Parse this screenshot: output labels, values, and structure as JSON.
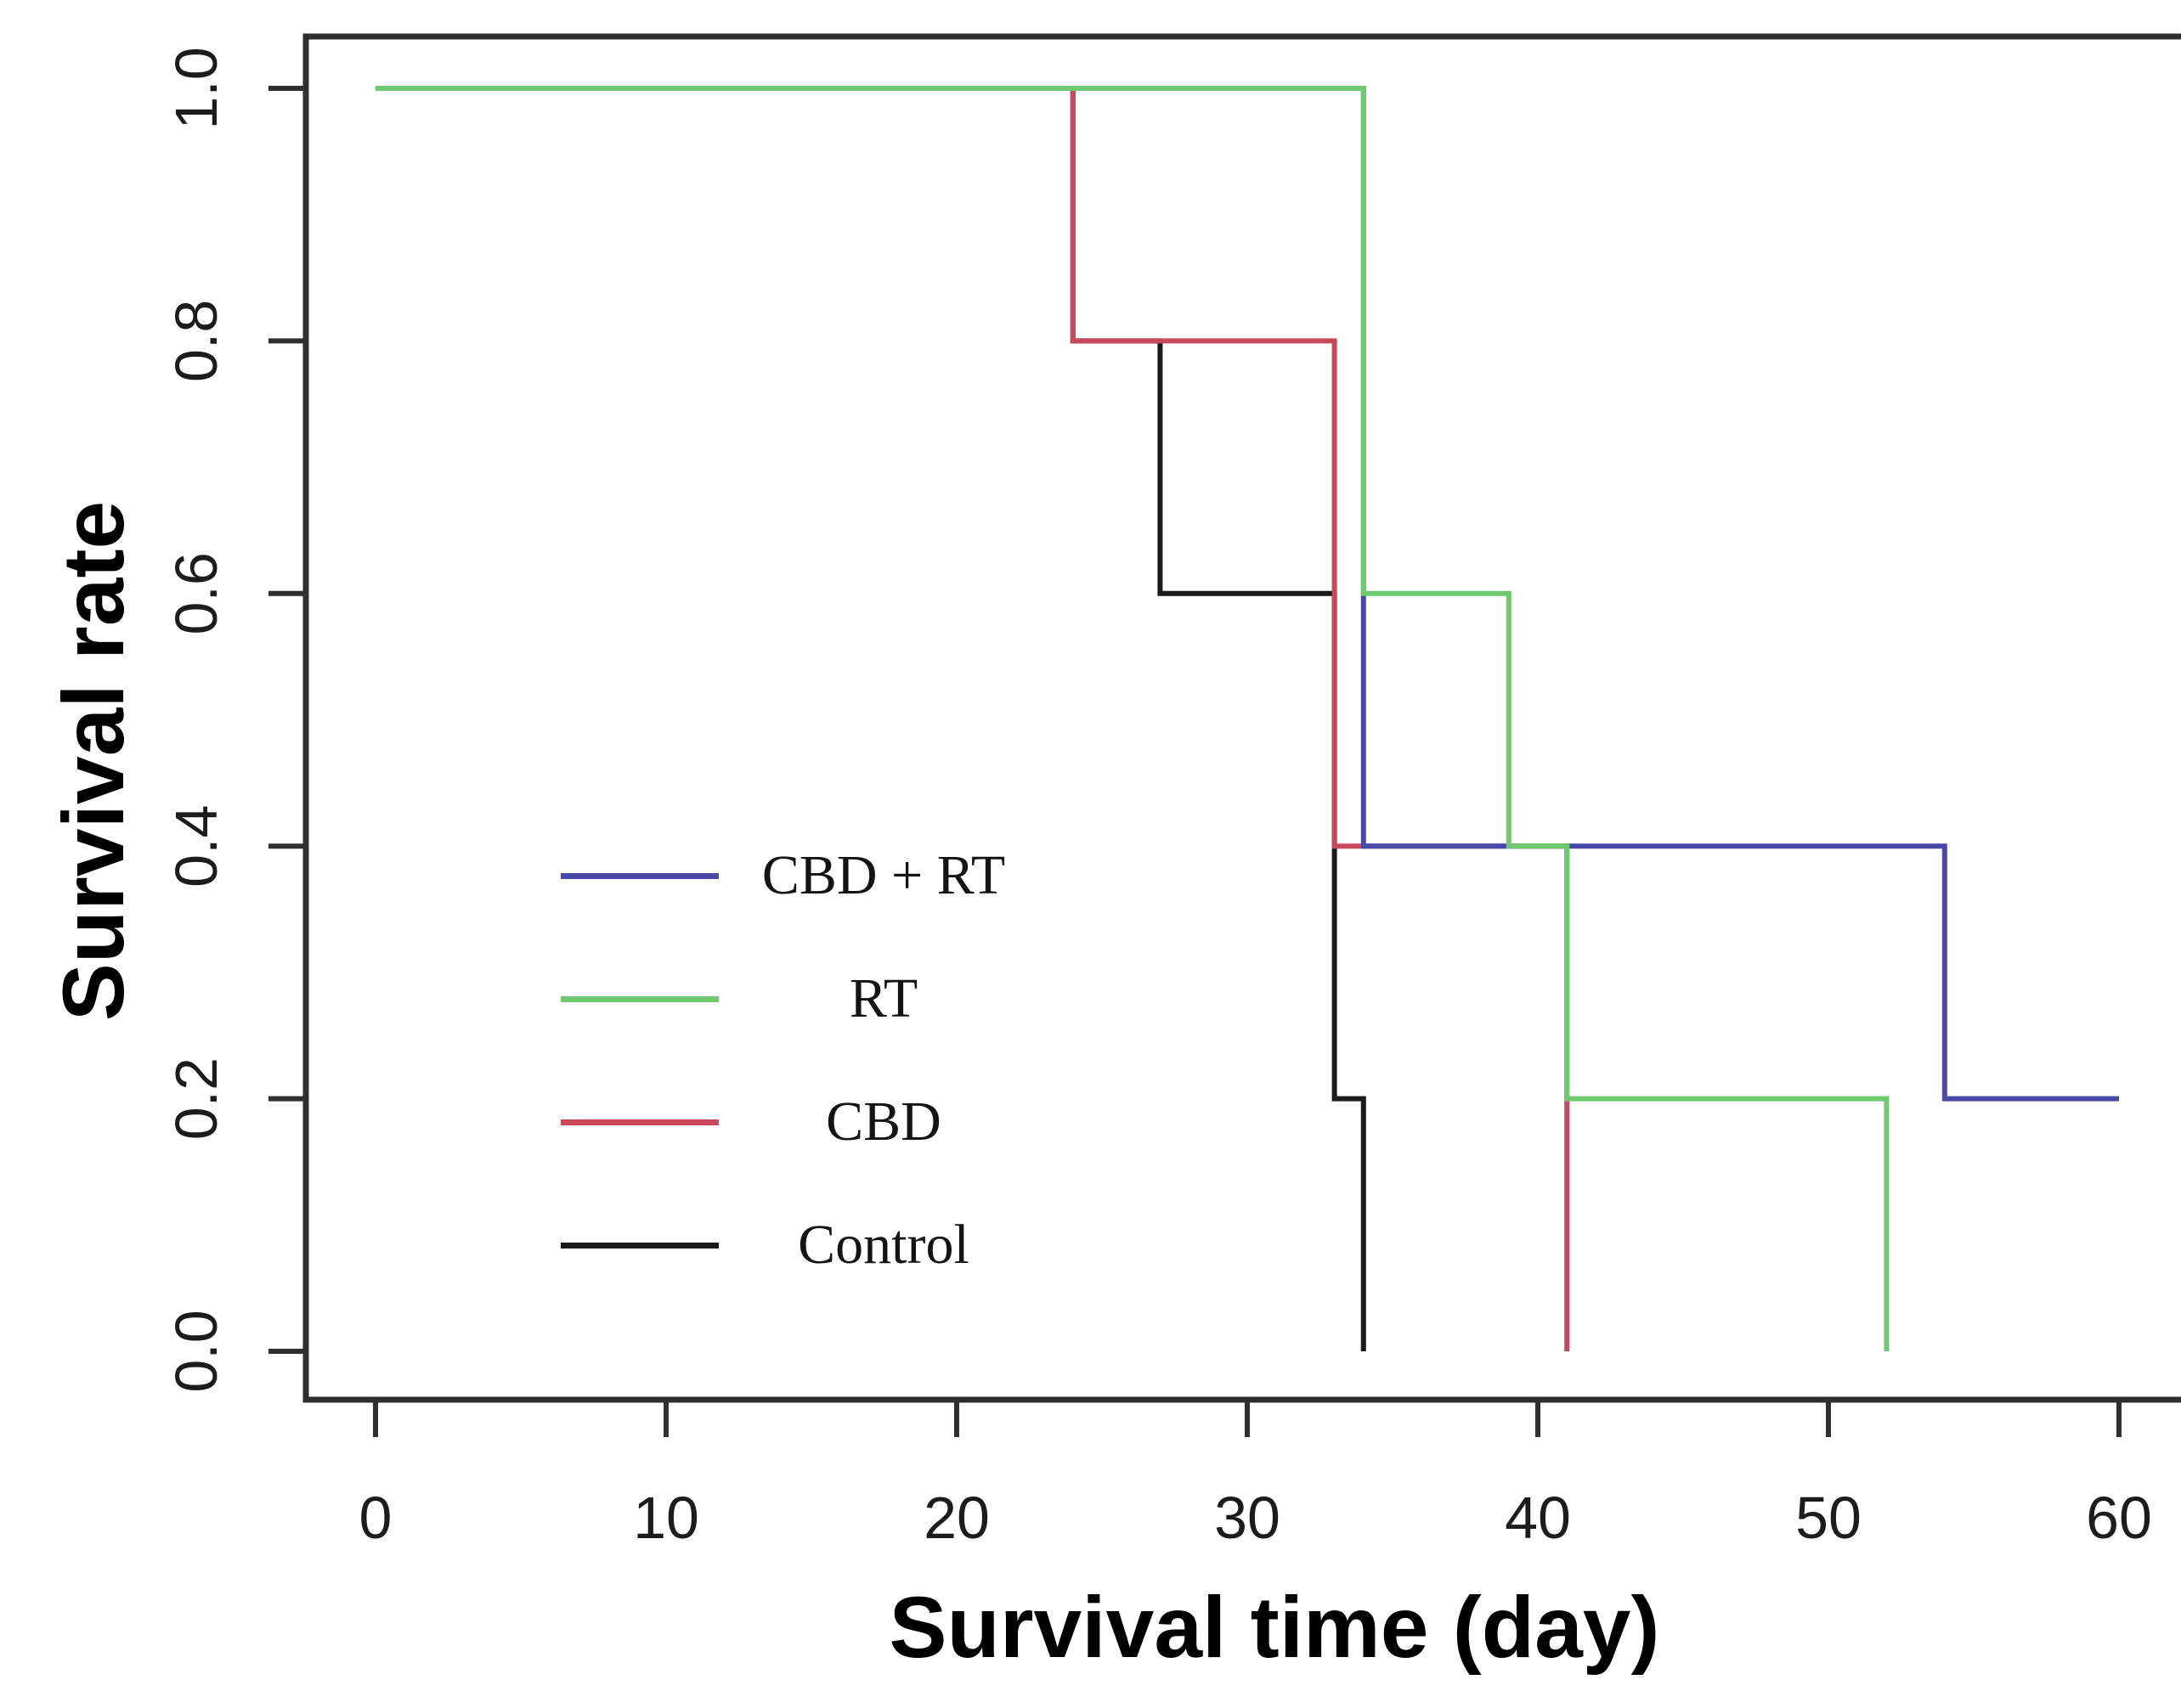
{
  "chart_data": {
    "type": "line",
    "subtype": "kaplan-meier-step",
    "title": "",
    "xlabel": "Survival time (day)",
    "ylabel": "Survival rate",
    "xlim": [
      0,
      60
    ],
    "ylim": [
      0.0,
      1.0
    ],
    "x_ticks": [
      0,
      10,
      20,
      30,
      40,
      50,
      60
    ],
    "x_tick_labels": [
      "0",
      "10",
      "20",
      "30",
      "40",
      "50",
      "60"
    ],
    "y_ticks": [
      0.0,
      0.2,
      0.4,
      0.6,
      0.8,
      1.0
    ],
    "y_tick_labels": [
      "0.0",
      "0.2",
      "0.4",
      "0.6",
      "0.8",
      "1.0"
    ],
    "grid": "off",
    "legend_position": "inside-center-left",
    "series": [
      {
        "name": "CBD + RT",
        "color": "#4949a8",
        "points": [
          [
            0,
            1.0
          ],
          [
            34,
            1.0
          ],
          [
            34,
            0.4
          ],
          [
            54,
            0.4
          ],
          [
            54,
            0.2
          ],
          [
            60,
            0.2
          ]
        ]
      },
      {
        "name": "RT",
        "color": "#6fc96f",
        "points": [
          [
            0,
            1.0
          ],
          [
            34,
            1.0
          ],
          [
            34,
            0.6
          ],
          [
            39,
            0.6
          ],
          [
            39,
            0.4
          ],
          [
            41,
            0.4
          ],
          [
            41,
            0.2
          ],
          [
            52,
            0.2
          ],
          [
            52,
            0.0
          ]
        ]
      },
      {
        "name": "CBD",
        "color": "#c9485a",
        "points": [
          [
            0,
            1.0
          ],
          [
            24,
            1.0
          ],
          [
            24,
            0.8
          ],
          [
            33,
            0.8
          ],
          [
            33,
            0.4
          ],
          [
            41,
            0.4
          ],
          [
            41,
            0.0
          ]
        ]
      },
      {
        "name": "Control",
        "color": "#1b1b1b",
        "points": [
          [
            0,
            1.0
          ],
          [
            24,
            1.0
          ],
          [
            24,
            0.8
          ],
          [
            27,
            0.8
          ],
          [
            27,
            0.6
          ],
          [
            33,
            0.6
          ],
          [
            33,
            0.2
          ],
          [
            34,
            0.2
          ],
          [
            34,
            0.0
          ]
        ]
      }
    ]
  }
}
